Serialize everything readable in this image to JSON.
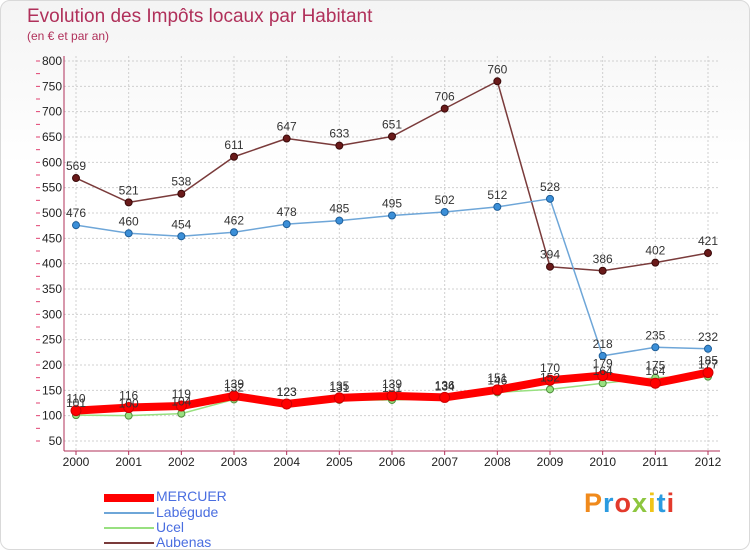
{
  "header": {
    "title": "Evolution des Impôts locaux par Habitant",
    "subtitle": "(en € et par an)"
  },
  "logo": {
    "text": "Proxiti",
    "colors": [
      "#f08a1c",
      "#2b9be0",
      "#e33a2c",
      "#8dc63f",
      "#f0c419",
      "#2b9be0",
      "#e33a2c"
    ]
  },
  "chart_data": {
    "type": "line",
    "title": "Evolution des Impôts locaux par Habitant",
    "subtitle": "(en € et par an)",
    "xlabel": "",
    "ylabel": "",
    "x": [
      "2000",
      "2001",
      "2002",
      "2003",
      "2004",
      "2005",
      "2006",
      "2007",
      "2008",
      "2009",
      "2010",
      "2011",
      "2012"
    ],
    "ylim": [
      50,
      800
    ],
    "yticks": [
      "50",
      "100",
      "150",
      "200",
      "250",
      "300",
      "350",
      "400",
      "450",
      "500",
      "550",
      "600",
      "650",
      "700",
      "750",
      "800"
    ],
    "grid": true,
    "legend": "bottom-left",
    "series": [
      {
        "name": "MERCUER",
        "color": "#ff0000",
        "values": [
          110,
          116,
          119,
          139,
          123,
          135,
          139,
          136,
          151,
          170,
          179,
          164,
          185
        ]
      },
      {
        "name": "Labégude",
        "color": "#6ea6d8",
        "values": [
          476,
          460,
          454,
          462,
          478,
          485,
          495,
          502,
          512,
          528,
          218,
          235,
          232
        ]
      },
      {
        "name": "Ucel",
        "color": "#98e080",
        "values": [
          101,
          100,
          104,
          132,
          123,
          131,
          131,
          134,
          146,
          152,
          164,
          175,
          177
        ]
      },
      {
        "name": "Aubenas",
        "color": "#7a3b3b",
        "values": [
          569,
          521,
          538,
          611,
          647,
          633,
          651,
          706,
          760,
          394,
          386,
          402,
          421
        ]
      }
    ]
  }
}
